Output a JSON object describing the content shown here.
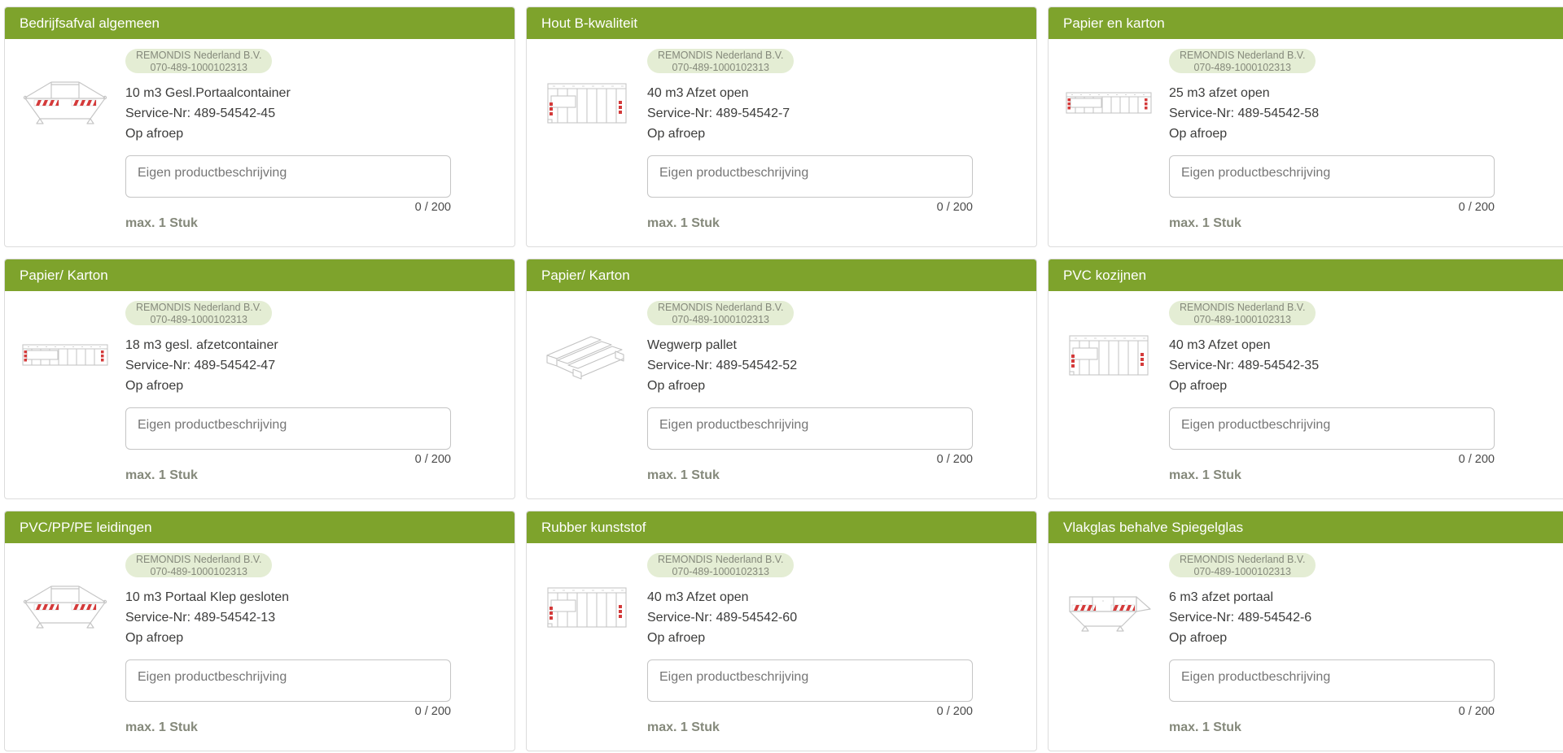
{
  "brand": {
    "supplier_name": "REMONDIS Nederland B.V.",
    "supplier_number": "070-489-1000102313"
  },
  "shared": {
    "input_placeholder": "Eigen productbeschrijving",
    "char_counter": "0 / 200",
    "max_label": "max. 1 Stuk"
  },
  "colors": {
    "header_green": "#7ea32c",
    "badge_bg": "#e4edd4",
    "muted_olive_text": "#85897b",
    "hazard_red": "#d43a3a"
  },
  "cards": [
    {
      "title": "Bedrijfsafval algemeen",
      "product": "10 m3 Gesl.Portaalcontainer",
      "service_nr": "Service-Nr: 489-54542-45",
      "availability": "Op afroep",
      "icon": "portal-container-icon"
    },
    {
      "title": "Hout B-kwaliteit",
      "product": "40 m3 Afzet open",
      "service_nr": "Service-Nr: 489-54542-7",
      "availability": "Op afroep",
      "icon": "open-container-icon"
    },
    {
      "title": "Papier en karton",
      "product": "25 m3 afzet open",
      "service_nr": "Service-Nr: 489-54542-58",
      "availability": "Op afroep",
      "icon": "closed-container-icon"
    },
    {
      "title": "Papier/ Karton",
      "product": "18 m3 gesl. afzetcontainer",
      "service_nr": "Service-Nr: 489-54542-47",
      "availability": "Op afroep",
      "icon": "closed-container-icon"
    },
    {
      "title": "Papier/ Karton",
      "product": "Wegwerp pallet",
      "service_nr": "Service-Nr: 489-54542-52",
      "availability": "Op afroep",
      "icon": "pallet-icon"
    },
    {
      "title": "PVC kozijnen",
      "product": "40 m3 Afzet open",
      "service_nr": "Service-Nr: 489-54542-35",
      "availability": "Op afroep",
      "icon": "open-container-icon"
    },
    {
      "title": "PVC/PP/PE leidingen",
      "product": "10 m3 Portaal Klep gesloten",
      "service_nr": "Service-Nr: 489-54542-13",
      "availability": "Op afroep",
      "icon": "portal-container-icon"
    },
    {
      "title": "Rubber kunststof",
      "product": "40 m3 Afzet open",
      "service_nr": "Service-Nr: 489-54542-60",
      "availability": "Op afroep",
      "icon": "open-container-icon"
    },
    {
      "title": "Vlakglas behalve Spiegelglas",
      "product": "6 m3 afzet portaal",
      "service_nr": "Service-Nr: 489-54542-6",
      "availability": "Op afroep",
      "icon": "skip-container-icon"
    }
  ]
}
